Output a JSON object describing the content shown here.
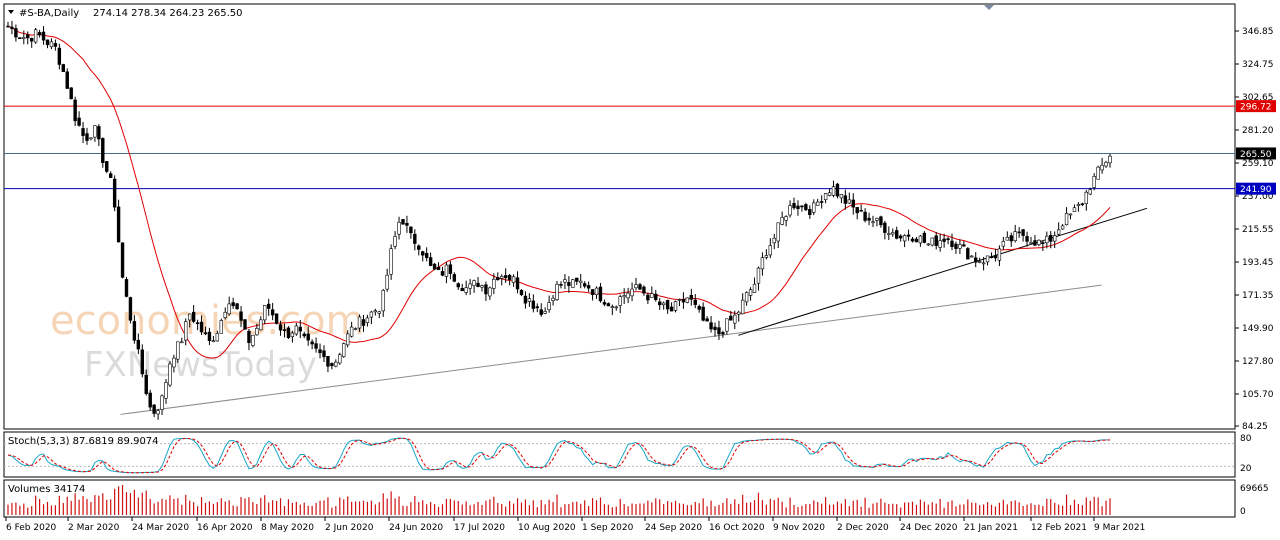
{
  "header": {
    "symbol": "#S-BA,Daily",
    "ohlc": "274.14 278.34 264.23 265.50"
  },
  "watermark": {
    "line1": "economies.com",
    "line2": "FXNewsToday"
  },
  "colors": {
    "bull_candle": "#ffffff",
    "bear_candle": "#000000",
    "wick": "#000000",
    "ma": "#e00000",
    "resistance": "#e00000",
    "support": "#0000c0",
    "current": "#4a6a8c",
    "trendline_up": "#000000",
    "trendline_long": "#8c8c8c",
    "stoch_main": "#1aa6c8",
    "stoch_signal": "#e00000",
    "volume": "#d01010",
    "frame": "#000000"
  },
  "chart_data": {
    "type": "candlestick",
    "title": "#S-BA,Daily",
    "y_ticks": [
      "346.85",
      "324.75",
      "302.65",
      "281.20",
      "259.10",
      "237.00",
      "215.55",
      "193.45",
      "171.35",
      "149.90",
      "127.80",
      "105.70",
      "84.25"
    ],
    "ylim": [
      84.25,
      354
    ],
    "x_ticks": [
      "6 Feb 2020",
      "2 Mar 2020",
      "24 Mar 2020",
      "16 Apr 2020",
      "8 May 2020",
      "2 Jun 2020",
      "24 Jun 2020",
      "17 Jul 2020",
      "10 Aug 2020",
      "1 Sep 2020",
      "24 Sep 2020",
      "16 Oct 2020",
      "9 Nov 2020",
      "2 Dec 2020",
      "24 Dec 2020",
      "21 Jan 2021",
      "12 Feb 2021",
      "9 Mar 2021"
    ],
    "horizontal_levels": [
      {
        "label": "296.72",
        "value": 296.72,
        "role": "resistance"
      },
      {
        "label": "265.50",
        "value": 265.5,
        "role": "current"
      },
      {
        "label": "241.90",
        "value": 241.9,
        "role": "support"
      }
    ],
    "trendlines": [
      {
        "from": [
          "2020-03-20",
          92
        ],
        "to": [
          "2021-03-12",
          178
        ],
        "role": "long"
      },
      {
        "from": [
          "2020-10-27",
          145
        ],
        "to": [
          "2021-03-30",
          229
        ],
        "role": "up"
      }
    ],
    "price_path": [
      350,
      345,
      342,
      345,
      340,
      335,
      315,
      290,
      275,
      282,
      260,
      240,
      180,
      150,
      120,
      92,
      100,
      130,
      140,
      160,
      150,
      140,
      150,
      170,
      160,
      140,
      150,
      165,
      155,
      145,
      150,
      140,
      135,
      130,
      125,
      140,
      150,
      155,
      160,
      165,
      200,
      225,
      210,
      205,
      190,
      185,
      190,
      180,
      175,
      180,
      175,
      185,
      185,
      180,
      170,
      165,
      160,
      175,
      180,
      178,
      180,
      175,
      170,
      165,
      170,
      175,
      175,
      170,
      165,
      160,
      165,
      170,
      160,
      150,
      145,
      152,
      158,
      170,
      180,
      200,
      210,
      225,
      232,
      230,
      228,
      238,
      243,
      236,
      230,
      225,
      222,
      218,
      215,
      210,
      212,
      210,
      205,
      208,
      210,
      205,
      200,
      195,
      195,
      198,
      205,
      210,
      212,
      208,
      205,
      210,
      220,
      225,
      232,
      245,
      255,
      265
    ],
    "indicators": {
      "ma": {
        "type": "sma",
        "color": "#e00000"
      },
      "stochastic": {
        "label": "Stoch(5,3,3) 87.6819 89.9074",
        "main": 87.6819,
        "signal": 89.9074,
        "levels": [
          "80",
          "20"
        ],
        "range": [
          0,
          100
        ]
      },
      "volume": {
        "label": "Volumes 34174",
        "last": 34174,
        "y_ticks": [
          "69665",
          "0"
        ],
        "max": 69665
      }
    }
  }
}
